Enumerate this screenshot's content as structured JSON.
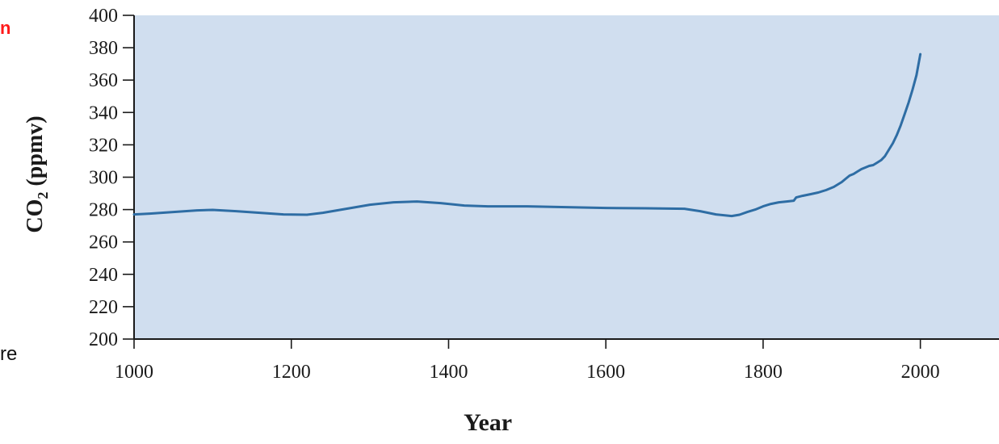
{
  "fragments": {
    "left_red": "n",
    "left_black": "re"
  },
  "chart_data": {
    "type": "line",
    "xlabel": "Year",
    "ylabel": "CO2 (ppmv)",
    "ylabel_main": "CO",
    "ylabel_sub": "2",
    "ylabel_unit": " (ppmv)",
    "xlim": [
      1000,
      2100
    ],
    "ylim": [
      200,
      400
    ],
    "x_ticks": [
      1000,
      1200,
      1400,
      1600,
      1800,
      2000
    ],
    "y_ticks": [
      200,
      220,
      240,
      260,
      280,
      300,
      320,
      340,
      360,
      380,
      400
    ],
    "grid": false,
    "background_color": "#d0deef",
    "line_color": "#2e6da4",
    "series": [
      {
        "x": [
          1000,
          1020,
          1050,
          1080,
          1100,
          1130,
          1160,
          1190,
          1220,
          1240,
          1270,
          1300,
          1330,
          1360,
          1390,
          1420,
          1450,
          1500,
          1550,
          1600,
          1650,
          1700,
          1720,
          1740,
          1760,
          1770,
          1780,
          1790,
          1800,
          1810,
          1820,
          1830,
          1839,
          1842,
          1850,
          1860,
          1870,
          1880,
          1890,
          1900,
          1905,
          1910,
          1915,
          1920,
          1925,
          1930,
          1935,
          1940,
          1945,
          1950,
          1955,
          1960,
          1965,
          1970,
          1975,
          1980,
          1985,
          1990,
          1995,
          2000
        ],
        "y": [
          277,
          277.5,
          278.5,
          279.5,
          279.8,
          279,
          278,
          277,
          276.8,
          278,
          280.5,
          283,
          284.5,
          285,
          284,
          282.5,
          282,
          282,
          281.5,
          281,
          280.8,
          280.5,
          279,
          277,
          276,
          276.8,
          278.5,
          280,
          282,
          283.5,
          284.5,
          285,
          285.5,
          287.5,
          288.5,
          289.5,
          290.5,
          292,
          294,
          297,
          299,
          301,
          302,
          303.5,
          305,
          306,
          307,
          307.5,
          309,
          310.5,
          313,
          317,
          321,
          326,
          332,
          339,
          346,
          354,
          363,
          376
        ]
      }
    ]
  }
}
